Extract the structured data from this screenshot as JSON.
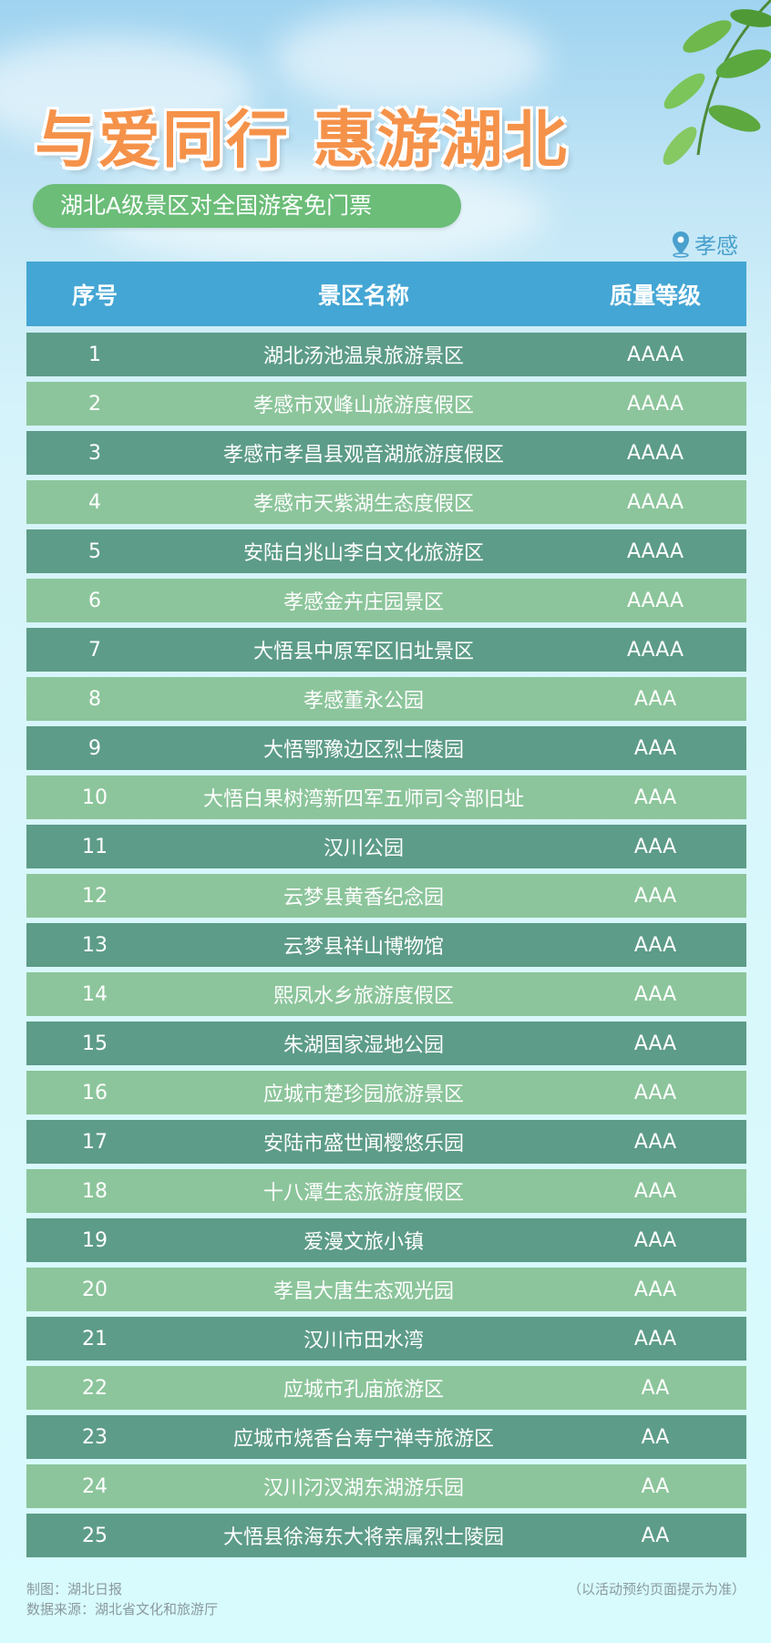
{
  "title": "与爱同行 惠游湖北",
  "subtitle": "湖北A级景区对全国游客免门票",
  "location": {
    "icon": "map-pin-icon",
    "label": "孝感"
  },
  "colors": {
    "header": "#44a6d4",
    "row_dark": "#5d9c88",
    "row_light": "#8cc59b",
    "title": "#f5924a",
    "pill": "#6bbd78"
  },
  "table": {
    "headers": [
      "序号",
      "景区名称",
      "质量等级"
    ],
    "rows": [
      [
        "1",
        "湖北汤池温泉旅游景区",
        "AAAA"
      ],
      [
        "2",
        "孝感市双峰山旅游度假区",
        "AAAA"
      ],
      [
        "3",
        "孝感市孝昌县观音湖旅游度假区",
        "AAAA"
      ],
      [
        "4",
        "孝感市天紫湖生态度假区",
        "AAAA"
      ],
      [
        "5",
        "安陆白兆山李白文化旅游区",
        "AAAA"
      ],
      [
        "6",
        "孝感金卉庄园景区",
        "AAAA"
      ],
      [
        "7",
        "大悟县中原军区旧址景区",
        "AAAA"
      ],
      [
        "8",
        "孝感董永公园",
        "AAA"
      ],
      [
        "9",
        "大悟鄂豫边区烈士陵园",
        "AAA"
      ],
      [
        "10",
        "大悟白果树湾新四军五师司令部旧址",
        "AAA"
      ],
      [
        "11",
        "汉川公园",
        "AAA"
      ],
      [
        "12",
        "云梦县黄香纪念园",
        "AAA"
      ],
      [
        "13",
        "云梦县祥山博物馆",
        "AAA"
      ],
      [
        "14",
        "熙凤水乡旅游度假区",
        "AAA"
      ],
      [
        "15",
        "朱湖国家湿地公园",
        "AAA"
      ],
      [
        "16",
        "应城市楚珍园旅游景区",
        "AAA"
      ],
      [
        "17",
        "安陆市盛世闻樱悠乐园",
        "AAA"
      ],
      [
        "18",
        "十八潭生态旅游度假区",
        "AAA"
      ],
      [
        "19",
        "爱漫文旅小镇",
        "AAA"
      ],
      [
        "20",
        "孝昌大唐生态观光园",
        "AAA"
      ],
      [
        "21",
        "汉川市田水湾",
        "AAA"
      ],
      [
        "22",
        "应城市孔庙旅游区",
        "AA"
      ],
      [
        "23",
        "应城市烧香台寿宁禅寺旅游区",
        "AA"
      ],
      [
        "24",
        "汉川汈汊湖东湖游乐园",
        "AA"
      ],
      [
        "25",
        "大悟县徐海东大将亲属烈士陵园",
        "AA"
      ]
    ]
  },
  "footer": {
    "credit": "制图：湖北日报",
    "source": "数据来源：湖北省文化和旅游厅",
    "note": "（以活动预约页面提示为准）"
  }
}
